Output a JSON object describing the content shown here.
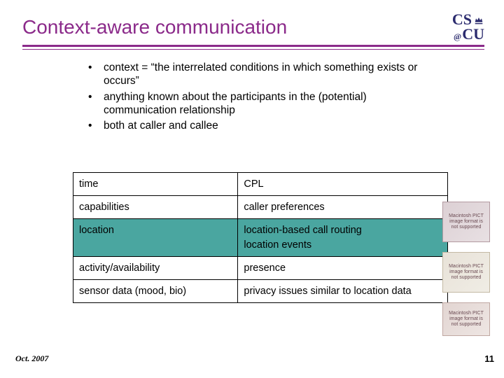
{
  "title": {
    "text": "Context-aware communication",
    "color": "#8b2a8a"
  },
  "logo": {
    "line1": "CS",
    "line2": "CU",
    "at": "@",
    "color": "#2b2b6e"
  },
  "rule_color": "#8b2a8a",
  "bullets": [
    "context = “the interrelated conditions in which something exists or occurs”",
    "anything known about the participants in the (potential) communication relationship",
    "both at caller and callee"
  ],
  "table": {
    "highlight_color": "#4aa6a0",
    "rows": [
      {
        "left": "time",
        "right": "CPL",
        "hl": false
      },
      {
        "left": "capabilities",
        "right": "caller preferences",
        "hl": false
      },
      {
        "left": "location",
        "right": "location-based call routing\nlocation events",
        "hl": true
      },
      {
        "left": "activity/availability",
        "right": "presence",
        "hl": false
      },
      {
        "left": "sensor data (mood, bio)",
        "right": "privacy issues similar to location data",
        "hl": false
      }
    ]
  },
  "placeholder_caption": "Macintosh PICT image format is not supported",
  "footer": {
    "date": "Oct. 2007",
    "page": "11"
  }
}
